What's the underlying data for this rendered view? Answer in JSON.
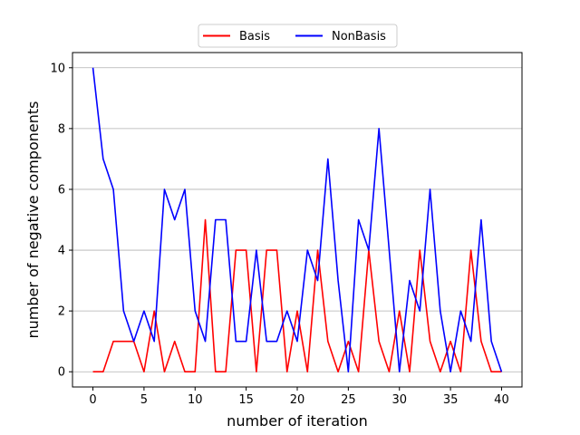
{
  "chart_data": {
    "type": "line",
    "title": "",
    "xlabel": "number of iteration",
    "ylabel": "number of negative components",
    "xlim": [
      -2,
      42
    ],
    "ylim": [
      -0.5,
      10.5
    ],
    "xticks": [
      0,
      5,
      10,
      15,
      20,
      25,
      30,
      35,
      40
    ],
    "yticks": [
      0,
      2,
      4,
      6,
      8,
      10
    ],
    "grid": "horizontal",
    "legend_position": "top-center",
    "x": [
      0,
      1,
      2,
      3,
      4,
      5,
      6,
      7,
      8,
      9,
      10,
      11,
      12,
      13,
      14,
      15,
      16,
      17,
      18,
      19,
      20,
      21,
      22,
      23,
      24,
      25,
      26,
      27,
      28,
      29,
      30,
      31,
      32,
      33,
      34,
      35,
      36,
      37,
      38,
      39,
      40
    ],
    "series": [
      {
        "name": "Basis",
        "color": "#ff0000",
        "values": [
          0,
          0,
          1,
          1,
          1,
          0,
          2,
          0,
          1,
          0,
          0,
          5,
          0,
          0,
          4,
          4,
          0,
          4,
          4,
          0,
          2,
          0,
          4,
          1,
          0,
          1,
          0,
          4,
          1,
          0,
          2,
          0,
          4,
          1,
          0,
          1,
          0,
          4,
          1,
          0,
          0
        ]
      },
      {
        "name": "NonBasis",
        "color": "#0000ff",
        "values": [
          10,
          7,
          6,
          2,
          1,
          2,
          1,
          6,
          5,
          6,
          2,
          1,
          5,
          5,
          1,
          1,
          4,
          1,
          1,
          2,
          1,
          4,
          3,
          7,
          3,
          0,
          5,
          4,
          8,
          4,
          0,
          3,
          2,
          6,
          2,
          0,
          2,
          1,
          5,
          1,
          0
        ]
      }
    ]
  }
}
